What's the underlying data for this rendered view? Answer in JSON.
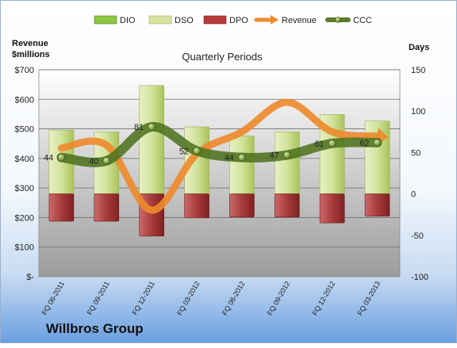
{
  "company": "Willbros Group",
  "chart_data": {
    "type": "bar",
    "title": "Quarterly Periods",
    "left_axis_label": [
      "Revenue",
      "$millions"
    ],
    "right_axis_label": "Days",
    "categories": [
      "FQ 06-2011",
      "FQ 09-2011",
      "FQ 12-2011",
      "FQ 03-2012",
      "FQ 06-2012",
      "FQ 09-2012",
      "FQ 12-2012",
      "FQ 03-2013"
    ],
    "left_ticks": [
      "$-",
      "$100",
      "$200",
      "$300",
      "$400",
      "$500",
      "$600",
      "$700"
    ],
    "right_ticks": [
      "-100",
      "-50",
      "0",
      "50",
      "100",
      "150"
    ],
    "ylim_left": [
      0,
      700
    ],
    "ylim_right": [
      -100,
      150
    ],
    "legend_position": "top",
    "grid": true,
    "series": [
      {
        "name": "DIO",
        "type": "stacked-bar",
        "axis": "right",
        "color": "#8cc63f",
        "values": [
          0,
          0,
          0,
          0,
          0,
          0,
          0,
          0
        ]
      },
      {
        "name": "DSO",
        "type": "stacked-bar",
        "axis": "right",
        "color": "#d7e4a3",
        "values": [
          77,
          75,
          131,
          81,
          70,
          75,
          96,
          88
        ]
      },
      {
        "name": "DPO",
        "type": "bar",
        "axis": "right",
        "color": "#b83c3c",
        "values": [
          -33,
          -33,
          -51,
          -29,
          -28,
          -28,
          -35,
          -27
        ]
      },
      {
        "name": "Revenue",
        "type": "smooth-line",
        "axis": "left",
        "color": "#ee8a2e",
        "values": [
          435,
          445,
          225,
          415,
          490,
          590,
          490,
          475
        ]
      },
      {
        "name": "CCC",
        "type": "smooth-line",
        "axis": "right",
        "color": "#5a7d28",
        "values": [
          44,
          40,
          81,
          52,
          44,
          47,
          61,
          62
        ]
      }
    ]
  }
}
